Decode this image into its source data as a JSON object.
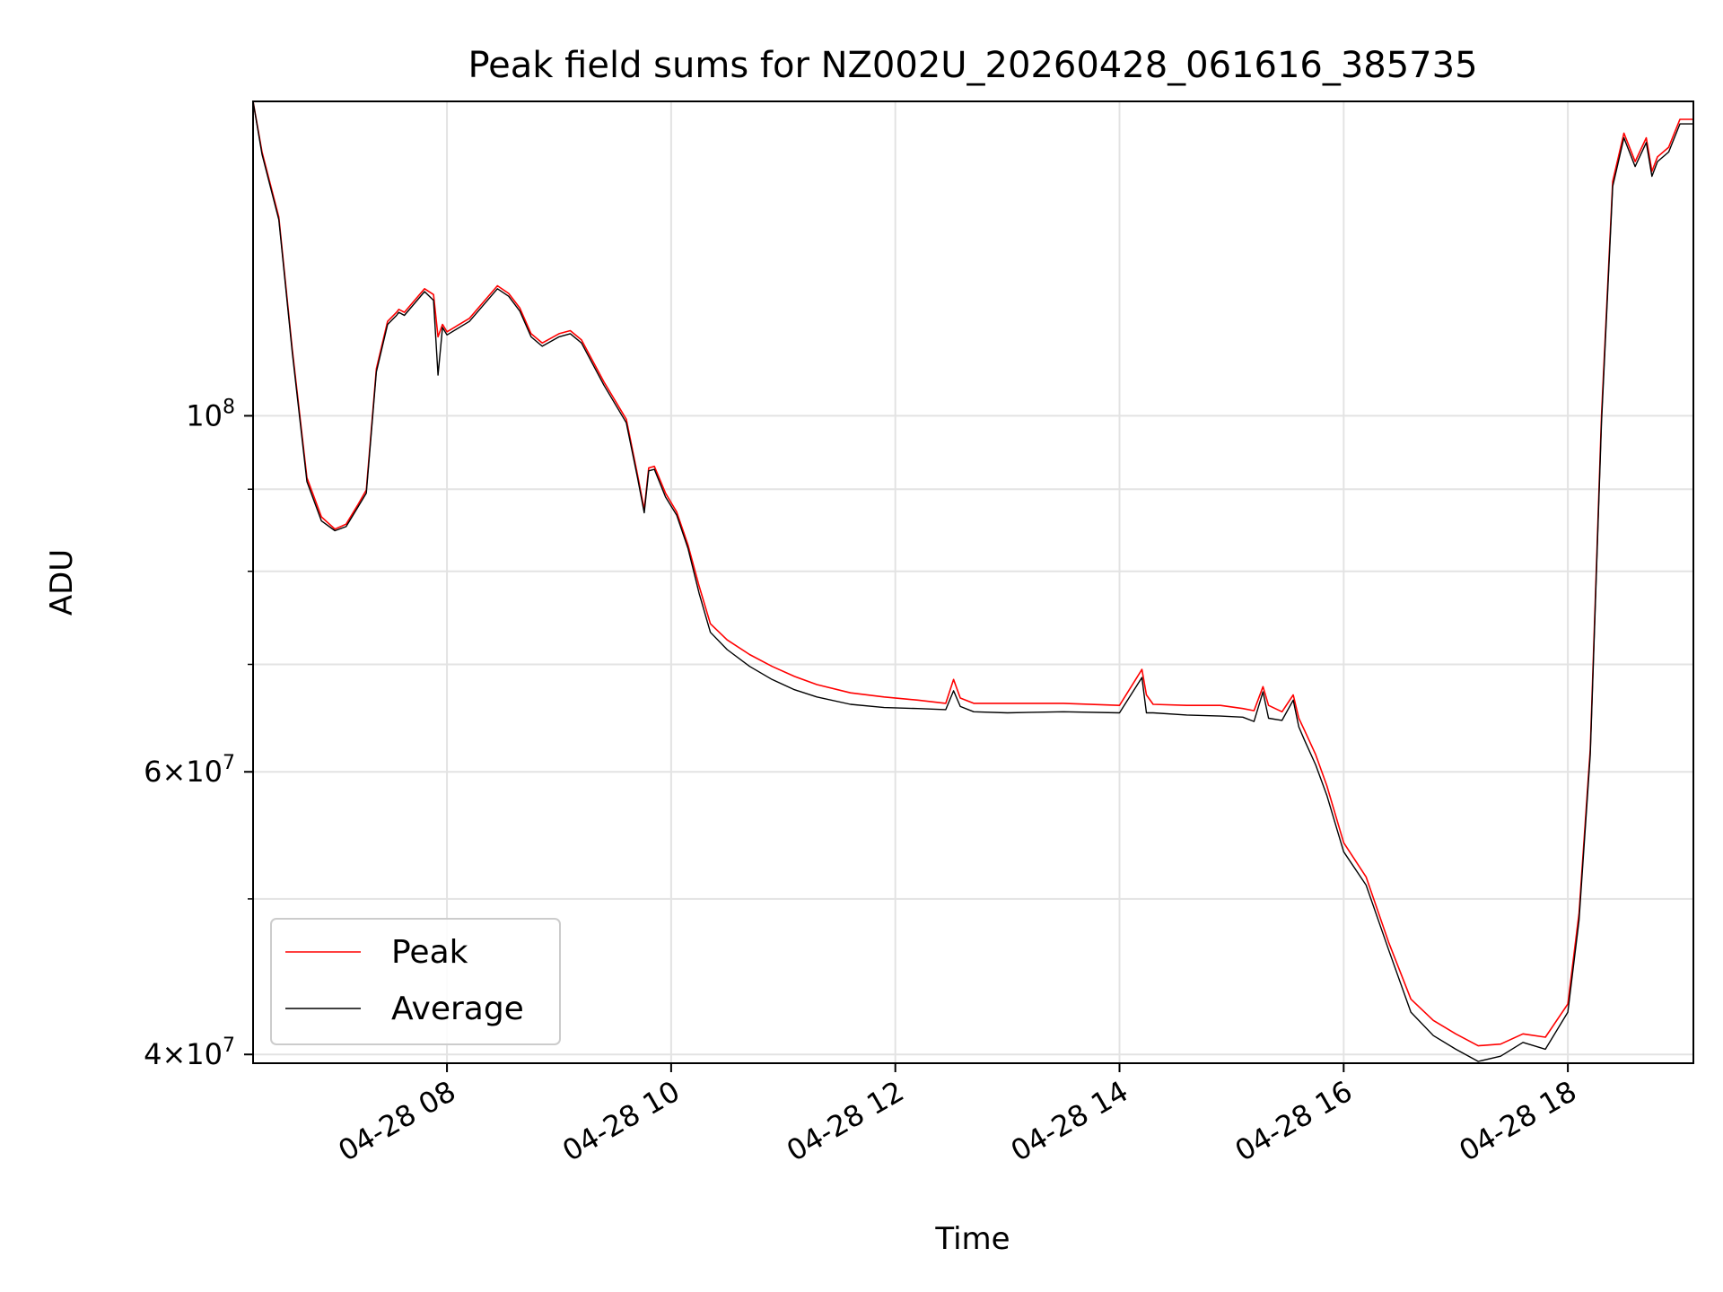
{
  "chart_data": {
    "type": "line",
    "title": "Peak field sums for NZ002U_20260428_061616_385735",
    "xlabel": "Time",
    "ylabel": "ADU",
    "yscale": "log",
    "ylim": [
      39500000,
      157000000
    ],
    "xlim": [
      6.27,
      19.12
    ],
    "grid": true,
    "legend_location": "lower-left",
    "x_ticks": [
      {
        "value": 8,
        "label": "04-28 08"
      },
      {
        "value": 10,
        "label": "04-28 10"
      },
      {
        "value": 12,
        "label": "04-28 12"
      },
      {
        "value": 14,
        "label": "04-28 14"
      },
      {
        "value": 16,
        "label": "04-28 16"
      },
      {
        "value": 18,
        "label": "04-28 18"
      }
    ],
    "y_major_ticks": [
      {
        "value": 40000000,
        "base": "4×10",
        "exp": "7"
      },
      {
        "value": 60000000,
        "base": "6×10",
        "exp": "7"
      },
      {
        "value": 100000000,
        "base": "10",
        "exp": "8"
      }
    ],
    "y_minor_ticks": [
      50000000,
      70000000,
      80000000,
      90000000
    ],
    "series": [
      {
        "name": "Peak",
        "color": "#ff0000",
        "x": [
          6.27,
          6.35,
          6.5,
          6.62,
          6.75,
          6.88,
          7.0,
          7.1,
          7.2,
          7.28,
          7.37,
          7.47,
          7.55,
          7.57,
          7.62,
          7.8,
          7.88,
          7.92,
          7.96,
          8.0,
          8.2,
          8.45,
          8.55,
          8.65,
          8.75,
          8.85,
          9.0,
          9.1,
          9.2,
          9.4,
          9.6,
          9.7,
          9.76,
          9.8,
          9.85,
          9.95,
          10.05,
          10.15,
          10.25,
          10.35,
          10.5,
          10.7,
          10.9,
          11.1,
          11.3,
          11.6,
          11.9,
          12.2,
          12.45,
          12.52,
          12.58,
          12.7,
          13.0,
          13.5,
          14.0,
          14.2,
          14.24,
          14.3,
          14.6,
          14.9,
          15.1,
          15.2,
          15.28,
          15.33,
          15.45,
          15.55,
          15.6,
          15.65,
          15.75,
          15.85,
          16.0,
          16.2,
          16.4,
          16.6,
          16.8,
          17.0,
          17.2,
          17.4,
          17.6,
          17.8,
          18.0,
          18.1,
          18.2,
          18.3,
          18.4,
          18.5,
          18.6,
          18.7,
          18.75,
          18.8,
          18.9,
          19.0,
          19.12
        ],
        "y": [
          157000000,
          146000000,
          133000000,
          110000000,
          91500000,
          86500000,
          85000000,
          85600000,
          87900000,
          89900000,
          107000000,
          114500000,
          116000000,
          116500000,
          116000000,
          120000000,
          119000000,
          112000000,
          114000000,
          112800000,
          115000000,
          120500000,
          119200000,
          116700000,
          112500000,
          111000000,
          112500000,
          113000000,
          111500000,
          105000000,
          99500000,
          91900000,
          87400000,
          92800000,
          93000000,
          89500000,
          87100000,
          83100000,
          78300000,
          74200000,
          72500000,
          71000000,
          69800000,
          68800000,
          68000000,
          67200000,
          66800000,
          66500000,
          66200000,
          68500000,
          66700000,
          66200000,
          66200000,
          66200000,
          66000000,
          69500000,
          67000000,
          66100000,
          66000000,
          66000000,
          65700000,
          65500000,
          67800000,
          66000000,
          65400000,
          67000000,
          64800000,
          63700000,
          61500000,
          58800000,
          54200000,
          51600000,
          47000000,
          43300000,
          42000000,
          41200000,
          40500000,
          40600000,
          41200000,
          41000000,
          43000000,
          49000000,
          62000000,
          100000000,
          140000000,
          150000000,
          144000000,
          149000000,
          142000000,
          145000000,
          147000000,
          153000000,
          153000000
        ]
      },
      {
        "name": "Average",
        "color": "#000000",
        "x": [
          6.27,
          6.35,
          6.5,
          6.62,
          6.75,
          6.88,
          7.0,
          7.1,
          7.2,
          7.28,
          7.37,
          7.47,
          7.55,
          7.57,
          7.62,
          7.8,
          7.88,
          7.92,
          7.96,
          8.0,
          8.2,
          8.45,
          8.55,
          8.65,
          8.75,
          8.85,
          9.0,
          9.1,
          9.2,
          9.4,
          9.6,
          9.7,
          9.76,
          9.8,
          9.85,
          9.95,
          10.05,
          10.15,
          10.25,
          10.35,
          10.5,
          10.7,
          10.9,
          11.1,
          11.3,
          11.6,
          11.9,
          12.2,
          12.45,
          12.52,
          12.58,
          12.7,
          13.0,
          13.5,
          14.0,
          14.2,
          14.24,
          14.3,
          14.6,
          14.9,
          15.1,
          15.2,
          15.28,
          15.33,
          15.45,
          15.55,
          15.6,
          15.65,
          15.75,
          15.85,
          16.0,
          16.2,
          16.4,
          16.6,
          16.8,
          17.0,
          17.2,
          17.4,
          17.6,
          17.8,
          18.0,
          18.1,
          18.2,
          18.3,
          18.4,
          18.5,
          18.6,
          18.7,
          18.75,
          18.8,
          18.9,
          19.0,
          19.12
        ],
        "y": [
          157000000,
          145500000,
          132500000,
          109500000,
          91000000,
          86000000,
          84800000,
          85300000,
          87600000,
          89500000,
          106500000,
          114000000,
          115500000,
          116000000,
          115500000,
          119500000,
          118000000,
          106000000,
          113500000,
          112300000,
          114500000,
          120000000,
          118700000,
          116200000,
          112000000,
          110500000,
          112000000,
          112500000,
          111000000,
          104500000,
          99000000,
          91500000,
          87000000,
          92400000,
          92600000,
          89000000,
          86700000,
          82700000,
          77500000,
          73300000,
          71500000,
          69800000,
          68500000,
          67500000,
          66800000,
          66100000,
          65800000,
          65700000,
          65600000,
          67400000,
          65900000,
          65400000,
          65300000,
          65400000,
          65300000,
          68700000,
          65300000,
          65300000,
          65100000,
          65000000,
          64900000,
          64500000,
          67300000,
          64800000,
          64600000,
          66500000,
          64000000,
          62800000,
          60600000,
          58000000,
          53500000,
          51000000,
          46500000,
          42500000,
          41100000,
          40300000,
          39600000,
          39900000,
          40700000,
          40300000,
          42500000,
          48500000,
          61500000,
          99000000,
          139000000,
          149000000,
          143000000,
          148000000,
          141000000,
          144000000,
          146000000,
          152000000,
          152000000
        ]
      }
    ]
  }
}
